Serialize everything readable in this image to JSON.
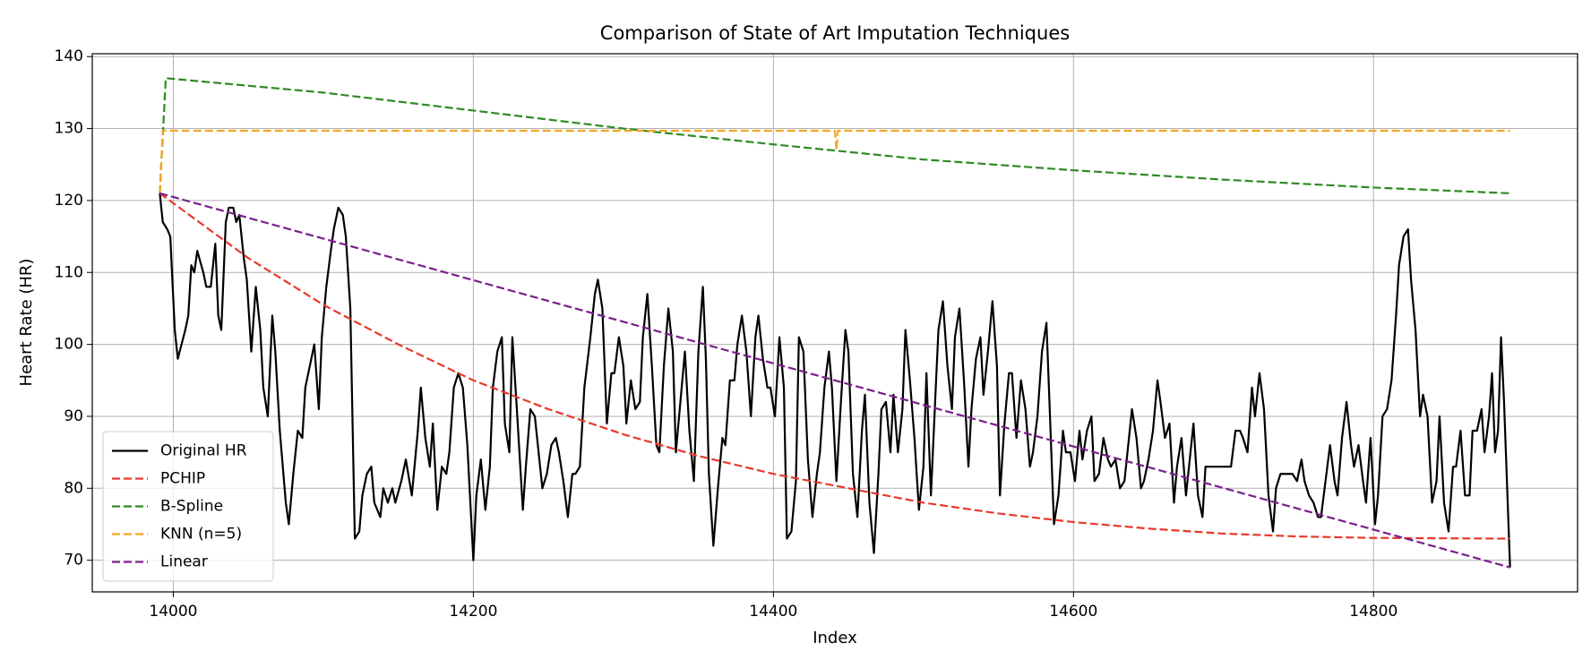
{
  "chart_data": {
    "type": "line",
    "title": "Comparison of State of Art Imputation Techniques",
    "x_label": "Index",
    "y_label": "Heart Rate (HR)",
    "xlim": [
      13946,
      14936
    ],
    "ylim": [
      65.6,
      140.4
    ],
    "xticks": [
      14000,
      14200,
      14400,
      14600,
      14800
    ],
    "yticks": [
      70,
      80,
      90,
      100,
      110,
      120,
      130,
      140
    ],
    "grid": true,
    "legend": "lower left",
    "series": [
      {
        "name": "Original HR",
        "color": "#000000",
        "dash": false,
        "x": [
          13991,
          13993,
          13996,
          13998,
          14001,
          14003,
          14008,
          14010,
          14012,
          14014,
          14016,
          14020,
          14022,
          14025,
          14028,
          14030,
          14032,
          14035,
          14037,
          14040,
          14042,
          14044,
          14047,
          14049,
          14052,
          14055,
          14058,
          14060,
          14063,
          14066,
          14068,
          14071,
          14075,
          14077,
          14080,
          14083,
          14086,
          14088,
          14091,
          14094,
          14097,
          14099,
          14102,
          14105,
          14107,
          14110,
          14113,
          14115,
          14118,
          14121,
          14124,
          14126,
          14129,
          14132,
          14134,
          14138,
          14140,
          14143,
          14146,
          14148,
          14152,
          14155,
          14159,
          14163,
          14165,
          14168,
          14171,
          14173,
          14176,
          14179,
          14182,
          14184,
          14187,
          14190,
          14193,
          14196,
          14198,
          14200,
          14202,
          14205,
          14208,
          14211,
          14213,
          14216,
          14219,
          14221,
          14224,
          14226,
          14229,
          14233,
          14235,
          14238,
          14241,
          14244,
          14246,
          14249,
          14252,
          14255,
          14257,
          14260,
          14263,
          14266,
          14268,
          14271,
          14274,
          14278,
          14281,
          14283,
          14286,
          14289,
          14292,
          14294,
          14297,
          14300,
          14302,
          14305,
          14308,
          14311,
          14313,
          14316,
          14319,
          14322,
          14324,
          14327,
          14330,
          14333,
          14335,
          14338,
          14341,
          14344,
          14347,
          14350,
          14353,
          14355,
          14357,
          14360,
          14363,
          14366,
          14368,
          14371,
          14374,
          14376,
          14379,
          14382,
          14385,
          14388,
          14390,
          14393,
          14396,
          14398,
          14401,
          14404,
          14407,
          14409,
          14412,
          14415,
          14417,
          14420,
          14423,
          14426,
          14429,
          14431,
          14434,
          14437,
          14439,
          14442,
          14445,
          14448,
          14450,
          14453,
          14456,
          14459,
          14461,
          14464,
          14467,
          14470,
          14472,
          14475,
          14478,
          14480,
          14483,
          14486,
          14488,
          14491,
          14494,
          14497,
          14500,
          14502,
          14505,
          14508,
          14510,
          14513,
          14516,
          14519,
          14521,
          14524,
          14527,
          14530,
          14532,
          14535,
          14538,
          14540,
          14543,
          14546,
          14549,
          14551,
          14554,
          14557,
          14559,
          14562,
          14565,
          14568,
          14571,
          14573,
          14576,
          14579,
          14582,
          14584,
          14587,
          14590,
          14593,
          14595,
          14598,
          14601,
          14604,
          14606,
          14609,
          14612,
          14614,
          14617,
          14620,
          14623,
          14625,
          14628,
          14631,
          14634,
          14636,
          14639,
          14642,
          14645,
          14647,
          14650,
          14653,
          14656,
          14658,
          14661,
          14664,
          14667,
          14669,
          14672,
          14675,
          14678,
          14680,
          14683,
          14686,
          14688,
          14691,
          14694,
          14699,
          14705,
          14708,
          14711,
          14713,
          14716,
          14719,
          14721,
          14724,
          14727,
          14730,
          14733,
          14735,
          14738,
          14741,
          14743,
          14746,
          14749,
          14752,
          14754,
          14757,
          14760,
          14763,
          14765,
          14768,
          14771,
          14774,
          14776,
          14779,
          14782,
          14785,
          14787,
          14790,
          14793,
          14795,
          14798,
          14801,
          14803,
          14806,
          14809,
          14812,
          14815,
          14817,
          14820,
          14823,
          14825,
          14828,
          14831,
          14833,
          14836,
          14839,
          14842,
          14844,
          14847,
          14850,
          14853,
          14855,
          14858,
          14861,
          14864,
          14866,
          14869,
          14872,
          14874,
          14877,
          14879,
          14881,
          14883,
          14885,
          14887,
          14891
        ],
        "values": [
          121,
          117,
          116,
          115,
          102,
          98,
          102,
          104,
          111,
          110,
          113,
          110,
          108,
          108,
          114,
          104,
          102,
          117,
          119,
          119,
          117,
          118,
          112,
          109,
          99,
          108,
          102,
          94,
          90,
          104,
          99,
          88,
          78,
          75,
          82,
          88,
          87,
          94,
          97,
          100,
          91,
          101,
          108,
          113,
          116,
          119,
          118,
          115,
          105,
          73,
          74,
          79,
          82,
          83,
          78,
          76,
          80,
          78,
          80,
          78,
          81,
          84,
          79,
          88,
          94,
          87,
          83,
          89,
          77,
          83,
          82,
          85,
          94,
          96,
          94,
          86,
          78,
          70,
          79,
          84,
          77,
          83,
          94,
          99,
          101,
          89,
          85,
          101,
          91,
          77,
          83,
          91,
          90,
          84,
          80,
          82,
          86,
          87,
          85,
          81,
          76,
          82,
          82,
          83,
          94,
          101,
          107,
          109,
          105,
          89,
          96,
          96,
          101,
          97,
          89,
          95,
          91,
          92,
          101,
          107,
          97,
          86,
          85,
          97,
          105,
          99,
          85,
          92,
          99,
          88,
          81,
          99,
          108,
          98,
          82,
          72,
          80,
          87,
          86,
          95,
          95,
          100,
          104,
          99,
          90,
          101,
          104,
          98,
          94,
          94,
          90,
          101,
          94,
          73,
          74,
          81,
          101,
          99,
          84,
          76,
          82,
          85,
          94,
          99,
          94,
          81,
          92,
          102,
          99,
          82,
          76,
          88,
          93,
          78,
          71,
          82,
          91,
          92,
          85,
          93,
          85,
          91,
          102,
          95,
          87,
          77,
          83,
          96,
          79,
          93,
          102,
          106,
          97,
          91,
          101,
          105,
          95,
          83,
          91,
          98,
          101,
          93,
          99,
          106,
          97,
          79,
          89,
          96,
          96,
          87,
          95,
          91,
          83,
          85,
          90,
          99,
          103,
          92,
          75,
          79,
          88,
          85,
          85,
          81,
          88,
          84,
          88,
          90,
          81,
          82,
          87,
          84,
          83,
          84,
          80,
          81,
          85,
          91,
          87,
          80,
          81,
          84,
          88,
          95,
          92,
          87,
          89,
          78,
          83,
          87,
          79,
          85,
          89,
          79,
          76,
          83,
          83,
          83,
          83,
          83,
          88,
          88,
          87,
          85,
          94,
          90,
          96,
          91,
          79,
          74,
          80,
          82,
          82,
          82,
          82,
          81,
          84,
          81,
          79,
          78,
          76,
          76,
          81,
          86,
          81,
          79,
          87,
          92,
          86,
          83,
          86,
          81,
          78,
          87,
          75,
          79,
          90,
          91,
          95,
          104,
          111,
          115,
          116,
          109,
          102,
          90,
          93,
          90,
          78,
          81,
          90,
          78,
          74,
          83,
          83,
          88,
          79,
          79,
          88,
          88,
          91,
          85,
          90,
          96,
          85,
          88,
          101,
          92,
          69
        ]
      },
      {
        "name": "PCHIP",
        "color": "#e8392b",
        "dash": true,
        "x": [
          13991,
          14050,
          14100,
          14150,
          14200,
          14250,
          14300,
          14350,
          14400,
          14450,
          14500,
          14550,
          14600,
          14650,
          14700,
          14750,
          14800,
          14891
        ],
        "values": [
          121,
          112,
          105.5,
          100,
          95,
          91,
          87.5,
          84.5,
          82,
          80,
          78,
          76.5,
          75.3,
          74.4,
          73.7,
          73.3,
          73.1,
          73
        ]
      },
      {
        "name": "B-Spline",
        "color": "#2e8b22",
        "dash": true,
        "x": [
          13991,
          13995,
          14100,
          14200,
          14300,
          14400,
          14500,
          14600,
          14700,
          14800,
          14891
        ],
        "values": [
          121,
          137,
          135,
          132.5,
          130,
          127.8,
          125.7,
          124.2,
          122.9,
          121.8,
          121
        ]
      },
      {
        "name": "KNN (n=5)",
        "color": "#f5a623",
        "dash": true,
        "x": [
          13991,
          13993,
          14441,
          14442,
          14443,
          14891
        ],
        "values": [
          121,
          129.7,
          129.7,
          127,
          129.7,
          129.7
        ]
      },
      {
        "name": "Linear",
        "color": "#7b1f8c",
        "dash": true,
        "x": [
          13991,
          14891
        ],
        "values": [
          121,
          69
        ]
      }
    ]
  }
}
